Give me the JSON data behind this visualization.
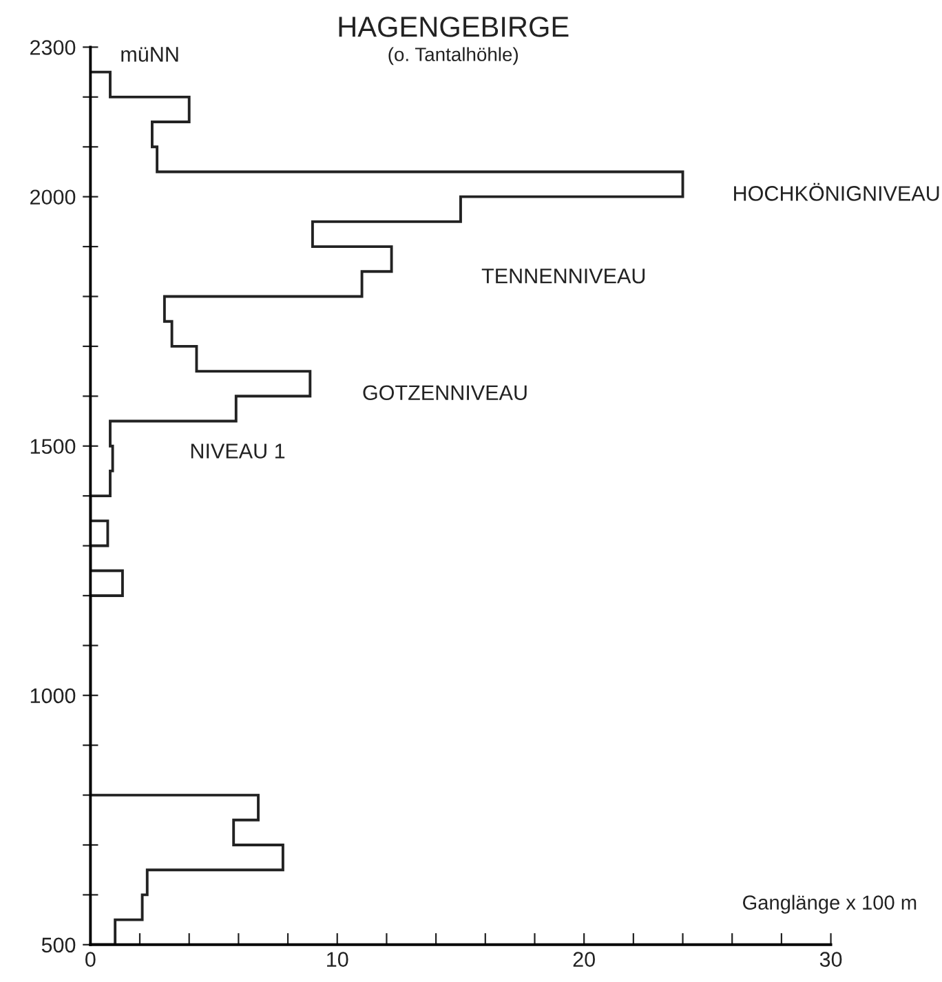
{
  "chart_data": {
    "type": "histogram",
    "orientation": "horizontal",
    "title": "HAGENGEBIRGE",
    "subtitle": "(o. Tantalhöhle)",
    "ylabel": "müNN",
    "xlabel": "Ganglänge x 100 m",
    "bins": [
      500,
      550,
      600,
      650,
      700,
      750,
      800,
      850,
      900,
      950,
      1000,
      1050,
      1100,
      1150,
      1200,
      1250,
      1300,
      1350,
      1400,
      1450,
      1500,
      1550,
      1600,
      1650,
      1700,
      1750,
      1800,
      1850,
      1900,
      1950,
      2000,
      2050,
      2100,
      2150,
      2200,
      2250
    ],
    "values": [
      1.0,
      2.1,
      2.3,
      7.8,
      5.8,
      6.8,
      0,
      0,
      0,
      0,
      0,
      0,
      0,
      0,
      1.3,
      0,
      0.7,
      0,
      0.8,
      0.9,
      0.8,
      5.9,
      8.9,
      4.3,
      3.3,
      3.0,
      11.0,
      12.2,
      9.0,
      15.0,
      24.0,
      2.7,
      2.5,
      4.0,
      0.8
    ],
    "color": "#222222",
    "xlim": [
      0,
      30
    ],
    "xticks": [
      0,
      {
        "value": 2,
        "label": null
      },
      {
        "value": 4,
        "label": null
      },
      {
        "value": 6,
        "label": null
      },
      {
        "value": 8,
        "label": null
      },
      10,
      {
        "value": 12,
        "label": null
      },
      {
        "value": 14,
        "label": null
      },
      {
        "value": 16,
        "label": null
      },
      {
        "value": 18,
        "label": null
      },
      20,
      {
        "value": 22,
        "label": null
      },
      {
        "value": 24,
        "label": null
      },
      {
        "value": 26,
        "label": null
      },
      {
        "value": 28,
        "label": null
      },
      30
    ],
    "ylim": [
      500,
      2300
    ],
    "yticks": [
      500,
      {
        "value": 600,
        "label": null
      },
      {
        "value": 700,
        "label": null
      },
      {
        "value": 800,
        "label": null
      },
      {
        "value": 900,
        "label": null
      },
      1000,
      {
        "value": 1100,
        "label": null
      },
      {
        "value": 1200,
        "label": null
      },
      {
        "value": 1300,
        "label": null
      },
      {
        "value": 1400,
        "label": null
      },
      1500,
      {
        "value": 1600,
        "label": null
      },
      {
        "value": 1700,
        "label": null
      },
      {
        "value": 1800,
        "label": null
      },
      {
        "value": 1900,
        "label": null
      },
      2000,
      {
        "value": 2100,
        "label": null
      },
      {
        "value": 2200,
        "label": null
      },
      2300
    ],
    "grid": false,
    "legend": false,
    "annotations": [
      "HOCHKÖNIGNIVEAU",
      "TENNENNIVEAU",
      "GOTZENNIVEAU",
      "NIVEAU 1"
    ]
  }
}
